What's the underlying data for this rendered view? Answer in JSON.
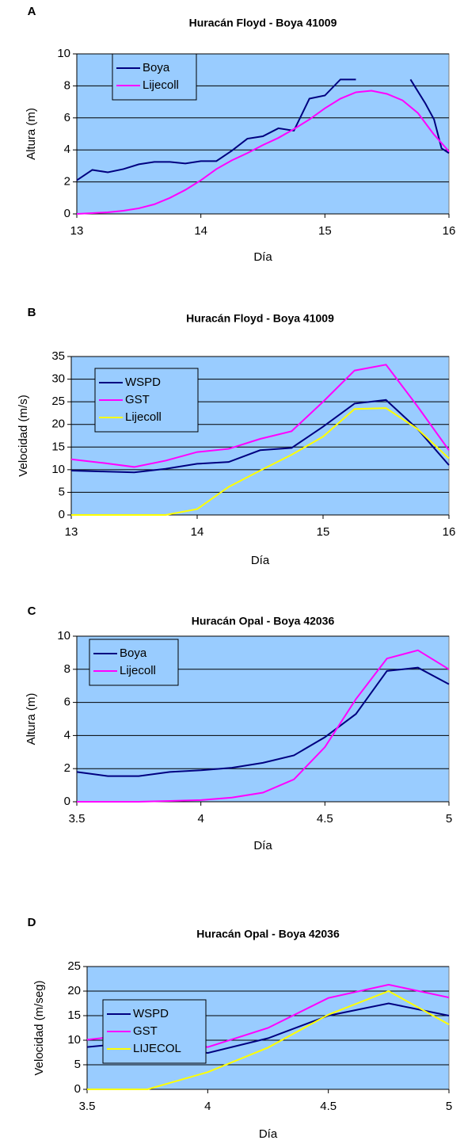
{
  "chart_data": [
    {
      "type": "line",
      "label": "A",
      "title": "Huracán Floyd - Boya 41009",
      "xlabel": "Día",
      "ylabel": "Altura (m)",
      "xlim": [
        13,
        16
      ],
      "xticks": [
        13,
        14,
        15,
        16
      ],
      "ylim": [
        0,
        10
      ],
      "yticks": [
        0,
        2,
        4,
        6,
        8,
        10
      ],
      "grid": true,
      "legend": "upper left",
      "background": "#99ccff",
      "series": [
        {
          "name": "Boya",
          "color": "#000080",
          "x": [
            13,
            13.125,
            13.25,
            13.375,
            13.5,
            13.625,
            13.75,
            13.875,
            14,
            14.125,
            14.25,
            14.375,
            14.5,
            14.625,
            14.75,
            14.875,
            15,
            15.125,
            15.25,
            15.5,
            15.69,
            15.81,
            15.88,
            15.94,
            16
          ],
          "values": [
            2.1,
            2.75,
            2.6,
            2.8,
            3.1,
            3.25,
            3.25,
            3.15,
            3.3,
            3.3,
            3.95,
            4.7,
            4.85,
            5.35,
            5.2,
            7.2,
            7.4,
            8.4,
            8.4,
            null,
            8.4,
            6.9,
            5.9,
            4.1,
            3.8
          ]
        },
        {
          "name": "Lijecoll",
          "color": "#ff00ff",
          "x": [
            13,
            13.125,
            13.25,
            13.375,
            13.5,
            13.625,
            13.75,
            13.875,
            14,
            14.125,
            14.25,
            14.375,
            14.5,
            14.625,
            14.75,
            14.875,
            15,
            15.125,
            15.25,
            15.375,
            15.5,
            15.625,
            15.75,
            15.875,
            16
          ],
          "values": [
            0,
            0.05,
            0.1,
            0.2,
            0.35,
            0.6,
            1.0,
            1.5,
            2.1,
            2.8,
            3.35,
            3.8,
            4.3,
            4.75,
            5.3,
            5.9,
            6.6,
            7.2,
            7.6,
            7.7,
            7.5,
            7.1,
            6.3,
            5.0,
            3.9
          ]
        }
      ]
    },
    {
      "type": "line",
      "label": "B",
      "title": "Huracán Floyd - Boya 41009",
      "xlabel": "Día",
      "ylabel": "Velocidad (m/s)",
      "xlim": [
        13,
        16
      ],
      "xticks": [
        13,
        14,
        15,
        16
      ],
      "ylim": [
        0,
        35
      ],
      "yticks": [
        0,
        5,
        10,
        15,
        20,
        25,
        30,
        35
      ],
      "grid": true,
      "legend": "upper left",
      "background": "#99ccff",
      "x": [
        13,
        13.25,
        13.5,
        13.75,
        14,
        14.25,
        14.5,
        14.75,
        15,
        15.25,
        15.5,
        15.75,
        16
      ],
      "series": [
        {
          "name": "WSPD",
          "color": "#000080",
          "values": [
            9.8,
            9.6,
            9.4,
            10.2,
            11.3,
            11.7,
            14.3,
            14.8,
            19.5,
            24.6,
            25.4,
            19.0,
            11.0
          ]
        },
        {
          "name": "GST",
          "color": "#ff00ff",
          "values": [
            12.3,
            11.5,
            10.6,
            12.0,
            13.9,
            14.6,
            16.8,
            18.5,
            25.0,
            31.9,
            33.2,
            24.0,
            14.3
          ]
        },
        {
          "name": "Lijecoll",
          "color": "#ffff00",
          "values": [
            0,
            0,
            0,
            0,
            1.3,
            6.2,
            9.8,
            13.3,
            17.3,
            23.4,
            23.6,
            19.0,
            12.5
          ]
        }
      ]
    },
    {
      "type": "line",
      "label": "C",
      "title": "Huracán Opal - Boya 42036",
      "xlabel": "Día",
      "ylabel": "Altura (m)",
      "xlim": [
        3.5,
        5
      ],
      "xticks": [
        3.5,
        4,
        4.5,
        5
      ],
      "ylim": [
        0,
        10
      ],
      "yticks": [
        0,
        2,
        4,
        6,
        8,
        10
      ],
      "grid": true,
      "legend": "upper left",
      "background": "#99ccff",
      "x": [
        3.5,
        3.625,
        3.75,
        3.875,
        4,
        4.125,
        4.25,
        4.375,
        4.5,
        4.625,
        4.75,
        4.875,
        5
      ],
      "series": [
        {
          "name": "Boya",
          "color": "#000080",
          "values": [
            1.8,
            1.55,
            1.55,
            1.8,
            1.9,
            2.05,
            2.35,
            2.8,
            3.9,
            5.3,
            7.9,
            8.1,
            7.1
          ]
        },
        {
          "name": "Lijecoll",
          "color": "#ff00ff",
          "values": [
            0,
            0,
            0,
            0.05,
            0.1,
            0.25,
            0.55,
            1.35,
            3.3,
            6.2,
            8.65,
            9.15,
            8.0
          ]
        }
      ]
    },
    {
      "type": "line",
      "label": "D",
      "title": "Huracán Opal - Boya 42036",
      "xlabel": "Día",
      "ylabel": "Velocidad (m/seg)",
      "xlim": [
        3.5,
        5
      ],
      "xticks": [
        3.5,
        4,
        4.5,
        5
      ],
      "ylim": [
        0,
        25
      ],
      "yticks": [
        0,
        5,
        10,
        15,
        20,
        25
      ],
      "grid": true,
      "legend": "upper left",
      "background": "#99ccff",
      "x": [
        3.5,
        3.75,
        4,
        4.25,
        4.5,
        4.75,
        5
      ],
      "series": [
        {
          "name": "WSPD",
          "color": "#000080",
          "values": [
            8.6,
            9.8,
            7.4,
            10.4,
            15.0,
            17.5,
            15.0
          ]
        },
        {
          "name": "GST",
          "color": "#ff00ff",
          "values": [
            10.1,
            11.5,
            8.6,
            12.5,
            18.6,
            21.3,
            18.7
          ]
        },
        {
          "name": "LIJECOL",
          "color": "#ffff00",
          "values": [
            0,
            0,
            3.5,
            8.5,
            15.2,
            20.0,
            13.2
          ]
        }
      ]
    }
  ]
}
